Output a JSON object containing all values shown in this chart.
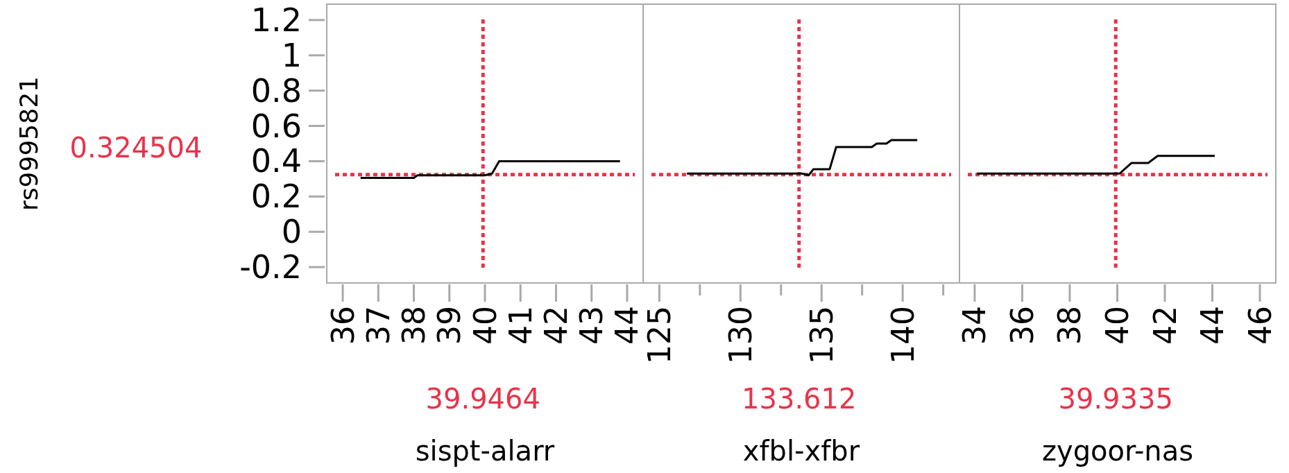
{
  "chart_data": [
    {
      "type": "line",
      "ylabel": "rs9995821",
      "xlabel": "sispt-alarr",
      "xlim": [
        35.55,
        44.45
      ],
      "xticks": [
        36,
        37,
        38,
        39,
        40,
        41,
        42,
        43,
        44
      ],
      "ylim": [
        -0.29,
        1.29
      ],
      "yticks": [
        {
          "value": 1.2,
          "label": "1.2"
        },
        1,
        0.8,
        0.6,
        0.4,
        0.2,
        0,
        {
          "value": -0.2,
          "label": "-0.2"
        }
      ],
      "series": [
        {
          "color": "#000000",
          "x": [
            36.5,
            38.0,
            38.1,
            40.0,
            40.2,
            40.4,
            43.8
          ],
          "values": [
            0.305,
            0.305,
            0.32,
            0.32,
            0.33,
            0.4,
            0.4
          ]
        }
      ],
      "ref_lines": [
        {
          "axis": "x",
          "value": 39.9464,
          "label": "39.9464",
          "color": "#e8334a",
          "line_style": "dotted"
        },
        {
          "axis": "y",
          "value": 0.324504,
          "label": "0.324504",
          "color": "#e8334a",
          "line_style": "dotted"
        }
      ]
    },
    {
      "type": "line",
      "xlabel": "xfbl-xfbr",
      "xlim": [
        124.0,
        143.5
      ],
      "xticks": [
        125,
        {
          "value": 127.5,
          "label": null
        },
        130,
        {
          "value": 132.5,
          "label": null
        },
        135,
        {
          "value": 137.5,
          "label": null
        },
        140,
        {
          "value": 142.5,
          "label": null
        }
      ],
      "ylim": [
        -0.29,
        1.29
      ],
      "tick_labels": "x",
      "series": [
        {
          "color": "#000000",
          "x": [
            126.7,
            133.8,
            134.2,
            134.5,
            135.5,
            135.9,
            138.1,
            138.4,
            139.0,
            139.3,
            140.9
          ],
          "values": [
            0.33,
            0.33,
            0.32,
            0.355,
            0.355,
            0.48,
            0.48,
            0.5,
            0.5,
            0.52,
            0.52
          ]
        }
      ],
      "ref_lines": [
        {
          "axis": "x",
          "value": 133.612,
          "label": "133.612",
          "color": "#e8334a",
          "line_style": "dotted"
        },
        {
          "axis": "y",
          "value": 0.324504,
          "color": "#e8334a",
          "line_style": "dotted"
        }
      ]
    },
    {
      "type": "line",
      "xlabel": "zygoor-nas",
      "xlim": [
        33.36,
        46.67
      ],
      "xticks": [
        34,
        36,
        38,
        40,
        42,
        44,
        46
      ],
      "ylim": [
        -0.29,
        1.29
      ],
      "tick_labels": "x",
      "series": [
        {
          "color": "#000000",
          "x": [
            34.1,
            40.1,
            40.6,
            41.3,
            41.7,
            44.1
          ],
          "values": [
            0.33,
            0.33,
            0.39,
            0.39,
            0.43,
            0.43
          ]
        }
      ],
      "ref_lines": [
        {
          "axis": "x",
          "value": 39.9335,
          "label": "39.9335",
          "color": "#e8334a",
          "line_style": "dotted"
        },
        {
          "axis": "y",
          "value": 0.324504,
          "color": "#e8334a",
          "line_style": "dotted"
        }
      ]
    }
  ]
}
